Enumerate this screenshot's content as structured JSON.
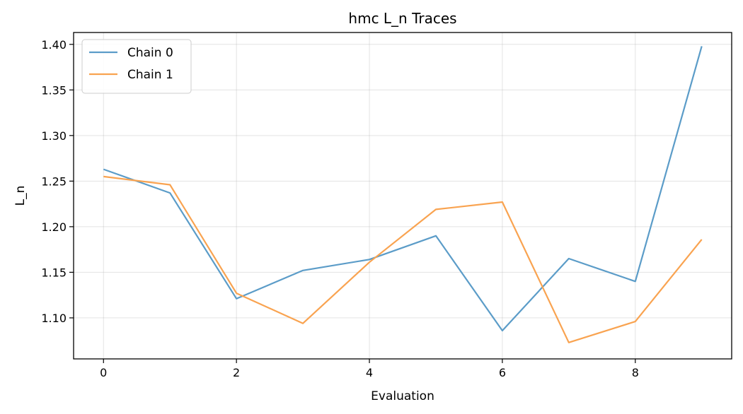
{
  "chart_data": {
    "type": "line",
    "title": "hmc L_n Traces",
    "xlabel": "Evaluation",
    "ylabel": "L_n",
    "x": [
      0,
      1,
      2,
      3,
      4,
      5,
      6,
      7,
      8,
      9
    ],
    "xlim": [
      -0.45,
      9.45
    ],
    "ylim": [
      1.055,
      1.413
    ],
    "x_ticks": [
      0,
      2,
      4,
      6,
      8
    ],
    "y_ticks": [
      1.1,
      1.15,
      1.2,
      1.25,
      1.3,
      1.35,
      1.4
    ],
    "grid": true,
    "legend_position": "top-left",
    "series": [
      {
        "name": "Chain 0",
        "color": "#5b9cc8",
        "values": [
          1.263,
          1.237,
          1.121,
          1.152,
          1.164,
          1.19,
          1.086,
          1.165,
          1.14,
          1.398
        ]
      },
      {
        "name": "Chain 1",
        "color": "#f9a350",
        "values": [
          1.255,
          1.246,
          1.127,
          1.094,
          1.161,
          1.219,
          1.227,
          1.073,
          1.096,
          1.186
        ]
      }
    ]
  }
}
